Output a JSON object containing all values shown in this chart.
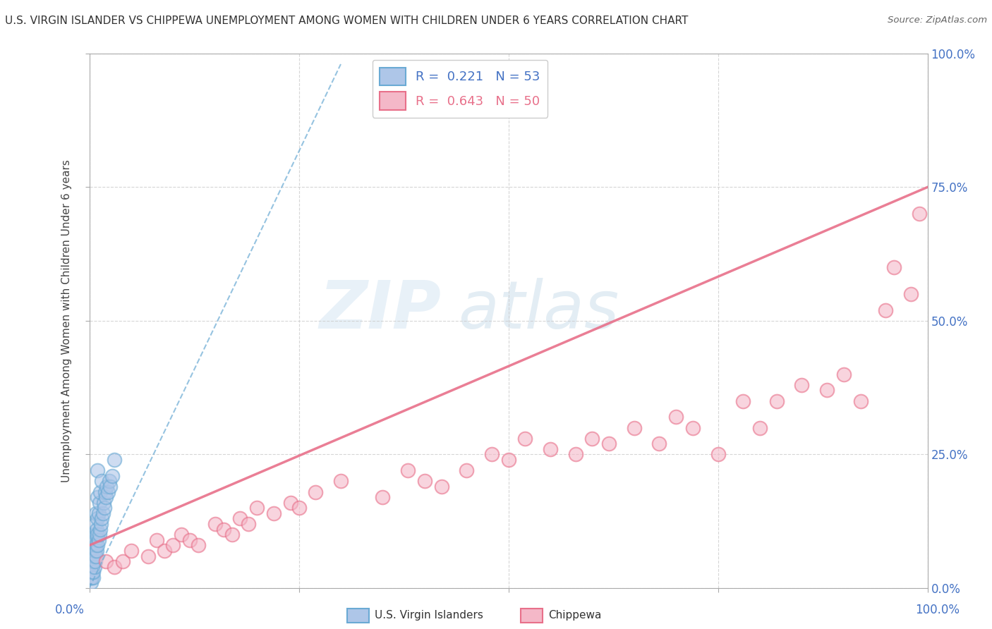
{
  "title": "U.S. VIRGIN ISLANDER VS CHIPPEWA UNEMPLOYMENT AMONG WOMEN WITH CHILDREN UNDER 6 YEARS CORRELATION CHART",
  "source": "Source: ZipAtlas.com",
  "ylabel": "Unemployment Among Women with Children Under 6 years",
  "ylim": [
    0,
    1
  ],
  "xlim": [
    0,
    1
  ],
  "ytick_labels": [
    "0.0%",
    "25.0%",
    "50.0%",
    "75.0%",
    "100.0%"
  ],
  "ytick_values": [
    0,
    0.25,
    0.5,
    0.75,
    1.0
  ],
  "legend1_label": "R =  0.221   N = 53",
  "legend2_label": "R =  0.643   N = 50",
  "legend1_color": "#aec6e8",
  "legend2_color": "#f4b8c8",
  "series1_name": "U.S. Virgin Islanders",
  "series2_name": "Chippewa",
  "series1_edge": "#6aaad4",
  "series2_edge": "#e8708a",
  "trendline1_color": "#6aaad4",
  "trendline2_color": "#e8708a",
  "background_color": "#ffffff",
  "series1_x": [
    0.002,
    0.002,
    0.002,
    0.003,
    0.003,
    0.003,
    0.003,
    0.004,
    0.004,
    0.004,
    0.005,
    0.005,
    0.005,
    0.005,
    0.005,
    0.006,
    0.006,
    0.006,
    0.007,
    0.007,
    0.007,
    0.007,
    0.008,
    0.008,
    0.008,
    0.008,
    0.009,
    0.009,
    0.01,
    0.01,
    0.01,
    0.01,
    0.01,
    0.011,
    0.011,
    0.012,
    0.012,
    0.013,
    0.013,
    0.014,
    0.015,
    0.015,
    0.016,
    0.017,
    0.018,
    0.019,
    0.02,
    0.021,
    0.022,
    0.024,
    0.025,
    0.027,
    0.03
  ],
  "series1_y": [
    0.01,
    0.02,
    0.03,
    0.02,
    0.03,
    0.04,
    0.05,
    0.03,
    0.04,
    0.06,
    0.02,
    0.03,
    0.05,
    0.07,
    0.1,
    0.04,
    0.06,
    0.08,
    0.05,
    0.07,
    0.09,
    0.12,
    0.06,
    0.08,
    0.1,
    0.14,
    0.07,
    0.11,
    0.08,
    0.1,
    0.13,
    0.17,
    0.22,
    0.09,
    0.14,
    0.1,
    0.16,
    0.11,
    0.18,
    0.12,
    0.13,
    0.2,
    0.14,
    0.16,
    0.15,
    0.18,
    0.17,
    0.19,
    0.18,
    0.2,
    0.19,
    0.21,
    0.24
  ],
  "series2_x": [
    0.02,
    0.03,
    0.04,
    0.05,
    0.07,
    0.08,
    0.09,
    0.1,
    0.11,
    0.12,
    0.13,
    0.15,
    0.16,
    0.17,
    0.18,
    0.19,
    0.2,
    0.22,
    0.24,
    0.25,
    0.27,
    0.3,
    0.35,
    0.38,
    0.4,
    0.42,
    0.45,
    0.48,
    0.5,
    0.52,
    0.55,
    0.58,
    0.6,
    0.62,
    0.65,
    0.68,
    0.7,
    0.72,
    0.75,
    0.78,
    0.8,
    0.82,
    0.85,
    0.88,
    0.9,
    0.92,
    0.95,
    0.96,
    0.98,
    0.99
  ],
  "series2_y": [
    0.05,
    0.04,
    0.05,
    0.07,
    0.06,
    0.09,
    0.07,
    0.08,
    0.1,
    0.09,
    0.08,
    0.12,
    0.11,
    0.1,
    0.13,
    0.12,
    0.15,
    0.14,
    0.16,
    0.15,
    0.18,
    0.2,
    0.17,
    0.22,
    0.2,
    0.19,
    0.22,
    0.25,
    0.24,
    0.28,
    0.26,
    0.25,
    0.28,
    0.27,
    0.3,
    0.27,
    0.32,
    0.3,
    0.25,
    0.35,
    0.3,
    0.35,
    0.38,
    0.37,
    0.4,
    0.35,
    0.52,
    0.6,
    0.55,
    0.7
  ],
  "trendline1_x0": 0.0,
  "trendline1_y0": 0.0,
  "trendline1_x1": 0.3,
  "trendline1_y1": 0.98,
  "trendline2_x0": 0.0,
  "trendline2_y0": 0.08,
  "trendline2_x1": 1.0,
  "trendline2_y1": 0.75
}
